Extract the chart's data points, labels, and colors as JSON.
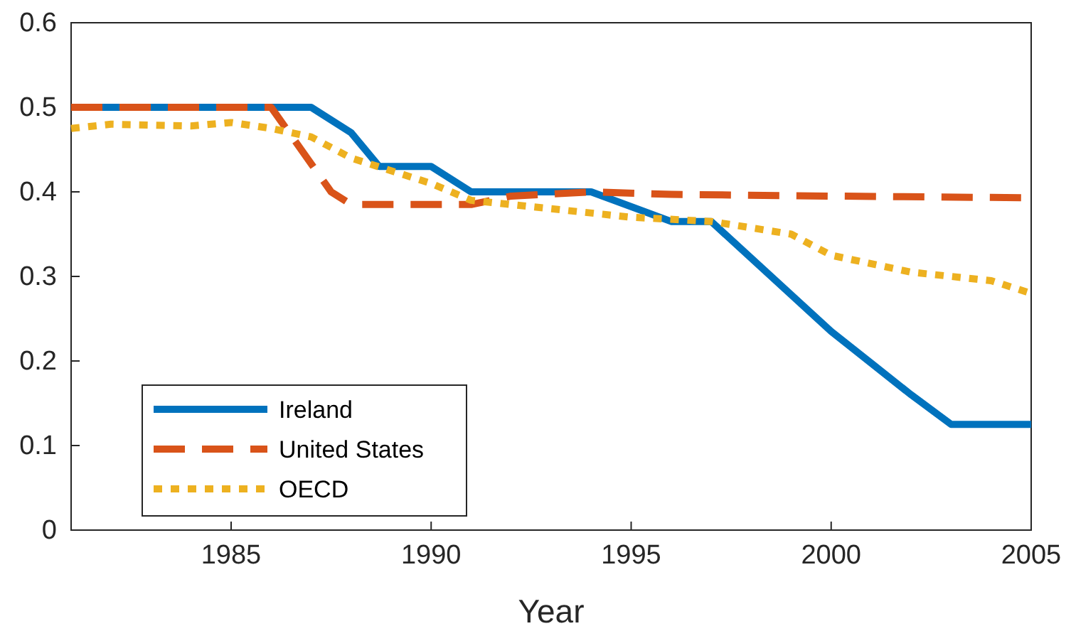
{
  "chart_data": {
    "type": "line",
    "xlabel": "Year",
    "xlim": [
      1981,
      2005
    ],
    "xticks": [
      1985,
      1990,
      1995,
      2000,
      2005
    ],
    "ylim": [
      0,
      0.6
    ],
    "yticks": [
      0,
      0.1,
      0.2,
      0.3,
      0.4,
      0.5,
      0.6
    ],
    "grid": false,
    "legend": "bottom left",
    "series": [
      {
        "name": "Ireland",
        "color": "#0072bd",
        "line_style": "solid",
        "x": [
          1981,
          1987,
          1988,
          1988.7,
          1990,
          1991,
          1994,
          1996,
          1997,
          2000,
          2002,
          2003,
          2005
        ],
        "values": [
          0.5,
          0.5,
          0.47,
          0.43,
          0.43,
          0.4,
          0.4,
          0.365,
          0.365,
          0.235,
          0.16,
          0.125,
          0.125
        ]
      },
      {
        "name": "United States",
        "color": "#d95319",
        "line_style": "dashed",
        "x": [
          1981,
          1986,
          1987.5,
          1988,
          1991,
          1992,
          1994,
          1996,
          2000,
          2005
        ],
        "values": [
          0.5,
          0.5,
          0.4,
          0.385,
          0.385,
          0.395,
          0.4,
          0.397,
          0.395,
          0.393
        ]
      },
      {
        "name": "OECD",
        "color": "#edb120",
        "line_style": "dotted",
        "x": [
          1981,
          1982,
          1984,
          1985,
          1986,
          1987,
          1988,
          1990,
          1991,
          1993,
          1995,
          1997,
          1999,
          2000,
          2002,
          2004,
          2005
        ],
        "values": [
          0.475,
          0.48,
          0.478,
          0.482,
          0.475,
          0.465,
          0.44,
          0.41,
          0.39,
          0.38,
          0.37,
          0.365,
          0.35,
          0.325,
          0.305,
          0.295,
          0.28
        ]
      }
    ]
  }
}
